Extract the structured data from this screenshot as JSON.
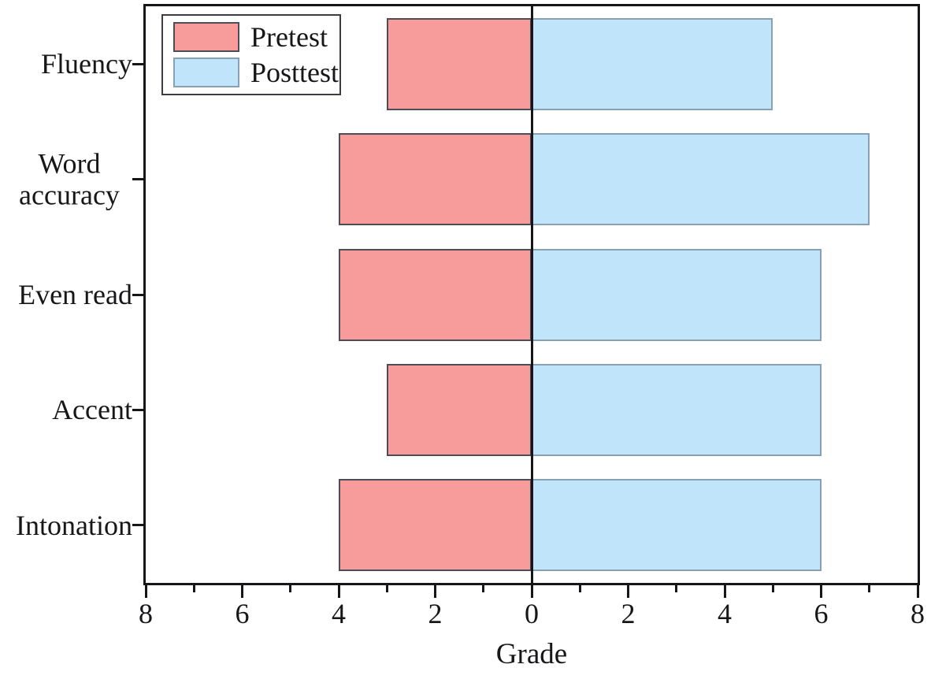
{
  "chart_data": {
    "type": "bar",
    "variant": "diverging-horizontal",
    "title": "",
    "xlabel": "Grade",
    "ylabel": "",
    "categories": [
      "Fluency",
      "Word accuracy",
      "Even read",
      "Accent",
      "Intonation"
    ],
    "series": [
      {
        "name": "Pretest",
        "direction": "left",
        "values": [
          3,
          4,
          4,
          3,
          4
        ],
        "fill": "#f89b9b",
        "stroke": "#4d4d57"
      },
      {
        "name": "Posttest",
        "direction": "right",
        "values": [
          5,
          7,
          6,
          6,
          6
        ],
        "fill": "#c0e4fa",
        "stroke": "#87a0b2"
      }
    ],
    "x_axis": {
      "left_max": 8,
      "right_max": 8,
      "major_step": 2,
      "minor_step": 1,
      "tick_labels": [
        "8",
        "6",
        "4",
        "2",
        "0",
        "2",
        "4",
        "6",
        "8"
      ]
    },
    "legend_position": "top-left",
    "grid": false,
    "axis_color": "#15151a",
    "background_color": "#ffffff"
  }
}
